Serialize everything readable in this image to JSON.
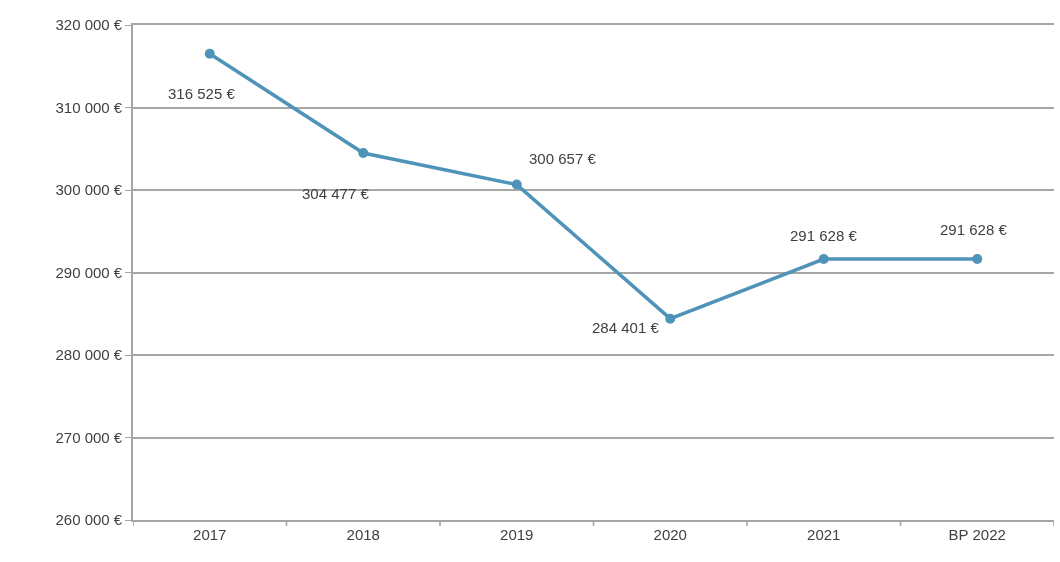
{
  "chart_data": {
    "type": "line",
    "categories": [
      "2017",
      "2018",
      "2019",
      "2020",
      "2021",
      "BP 2022"
    ],
    "series": [
      {
        "color": "#4f93b9",
        "values": [
          316525,
          304477,
          300657,
          284401,
          291628,
          291628
        ],
        "value_labels": [
          "316 525 €",
          "304 477 €",
          "300 657 €",
          "284 401 €",
          "291 628 €",
          "291 628 €"
        ]
      }
    ],
    "ylim": [
      260000,
      320000
    ],
    "yticks": [
      {
        "value": 260000,
        "label": "260 000 €"
      },
      {
        "value": 270000,
        "label": "270 000 €"
      },
      {
        "value": 280000,
        "label": "280 000 €"
      },
      {
        "value": 290000,
        "label": "290 000 €"
      },
      {
        "value": 300000,
        "label": "300 000 €"
      },
      {
        "value": 310000,
        "label": "310 000 €"
      },
      {
        "value": 320000,
        "label": "320 000 €"
      }
    ],
    "grid": "y",
    "marker": "circle",
    "line_style": "solid"
  }
}
